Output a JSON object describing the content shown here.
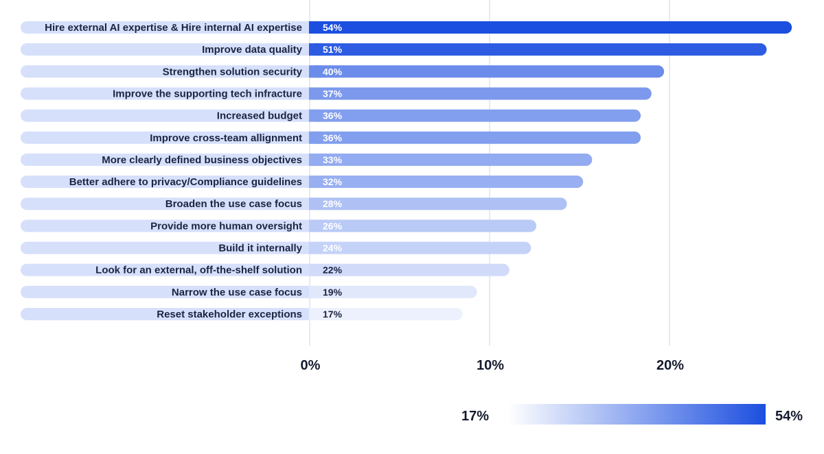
{
  "chart_data": {
    "type": "bar",
    "orientation": "horizontal",
    "categories": [
      "Hire external AI expertise & Hire internal AI expertise",
      "Improve data quality",
      "Strengthen solution security",
      "Improve the supporting tech infracture",
      "Increased budget",
      "Improve cross-team allignment",
      "More clearly defined business objectives",
      "Better adhere to privacy/Compliance guidelines",
      "Broaden the use case focus",
      "Provide more human oversight",
      "Build it internally",
      "Look for an external, off-the-shelf solution",
      "Narrow the use case focus",
      "Reset stakeholder exceptions"
    ],
    "bar_lengths": [
      26.8,
      25.4,
      19.7,
      19.0,
      18.4,
      18.4,
      15.7,
      15.2,
      14.3,
      12.6,
      12.3,
      11.1,
      9.3,
      8.5
    ],
    "labels": [
      "54%",
      "51%",
      "40%",
      "37%",
      "36%",
      "36%",
      "33%",
      "32%",
      "28%",
      "26%",
      "24%",
      "22%",
      "19%",
      "17%"
    ],
    "color_values": [
      54,
      51,
      40,
      37,
      36,
      36,
      33,
      32,
      28,
      26,
      24,
      22,
      19,
      17
    ],
    "xticks": [
      {
        "value": 0,
        "label": "0%"
      },
      {
        "value": 10,
        "label": "10%"
      },
      {
        "value": 20,
        "label": "20%"
      }
    ],
    "xlim": [
      0,
      27
    ],
    "grid": true,
    "legend": {
      "type": "color-gradient",
      "placement": "bottom-right",
      "min_label": "17%",
      "max_label": "54%",
      "min": 17,
      "max": 54
    },
    "colors": {
      "low": "#edf1fd",
      "high": "#1c4fe0",
      "label_track": "#d6e0fb",
      "gridline": "#dfe3ed",
      "value_text_light": "#ffffff",
      "value_text_dark": "#1b2440"
    }
  }
}
